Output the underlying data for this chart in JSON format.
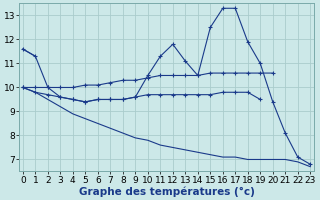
{
  "xlabel": "Graphe des températures (°c)",
  "background_color": "#cce8e8",
  "line_color": "#1a3a8a",
  "grid_color": "#aacccc",
  "x": [
    0,
    1,
    2,
    3,
    4,
    5,
    6,
    7,
    8,
    9,
    10,
    11,
    12,
    13,
    14,
    15,
    16,
    17,
    18,
    19,
    20,
    21,
    22,
    23
  ],
  "series": {
    "s1": [
      11.6,
      11.3,
      null,
      null,
      null,
      null,
      null,
      null,
      null,
      null,
      null,
      null,
      null,
      null,
      null,
      null,
      null,
      null,
      null,
      null,
      null,
      null,
      null,
      null
    ],
    "s2": [
      11.6,
      11.3,
      10.0,
      9.6,
      9.5,
      9.4,
      9.5,
      9.5,
      9.5,
      9.6,
      10.5,
      11.3,
      11.8,
      11.1,
      10.5,
      12.5,
      13.3,
      13.3,
      11.9,
      11.0,
      9.4,
      8.1,
      7.1,
      6.8
    ],
    "s3": [
      10.0,
      10.0,
      10.0,
      10.0,
      10.0,
      10.1,
      10.1,
      10.2,
      10.3,
      10.3,
      10.4,
      10.5,
      10.5,
      10.5,
      10.5,
      10.6,
      10.6,
      10.6,
      10.6,
      10.6,
      10.6,
      null,
      null,
      null
    ],
    "s4": [
      10.0,
      9.8,
      9.7,
      9.6,
      9.5,
      9.4,
      9.5,
      9.5,
      9.5,
      9.6,
      9.7,
      9.7,
      9.7,
      9.7,
      9.7,
      9.7,
      9.8,
      9.8,
      9.8,
      9.5,
      null,
      null,
      null,
      null
    ],
    "s5": [
      10.0,
      9.8,
      9.5,
      9.2,
      8.9,
      8.7,
      8.5,
      8.3,
      8.1,
      7.9,
      7.8,
      7.6,
      7.5,
      7.4,
      7.3,
      7.2,
      7.1,
      7.1,
      7.0,
      7.0,
      7.0,
      7.0,
      6.9,
      6.7
    ]
  },
  "ylim": [
    6.5,
    13.5
  ],
  "xlim": [
    -0.3,
    23.3
  ],
  "yticks": [
    7,
    8,
    9,
    10,
    11,
    12,
    13
  ],
  "xticks": [
    0,
    1,
    2,
    3,
    4,
    5,
    6,
    7,
    8,
    9,
    10,
    11,
    12,
    13,
    14,
    15,
    16,
    17,
    18,
    19,
    20,
    21,
    22,
    23
  ],
  "tick_fontsize": 6.5,
  "xlabel_fontsize": 7.5
}
